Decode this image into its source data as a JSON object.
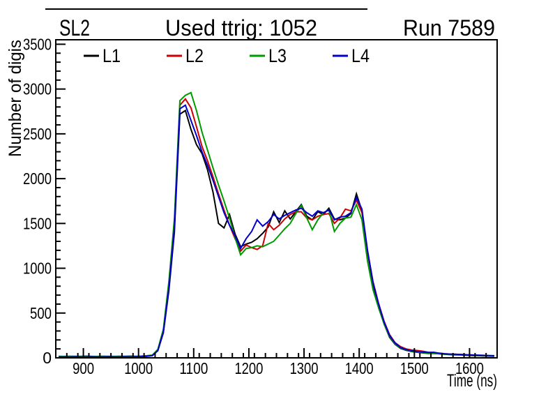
{
  "titles": {
    "left": "SL2",
    "center": "Used ttrig: 1052",
    "right": "Run 7589"
  },
  "chart_data": {
    "type": "line",
    "title": "Used ttrig: 1052",
    "pad_title_left": "SL2",
    "pad_title_right": "Run 7589",
    "xlabel": "Time (ns)",
    "ylabel": "Number of digis",
    "xlim": [
      850,
      1650
    ],
    "ylim": [
      0,
      3550
    ],
    "x_major_ticks": [
      900,
      1000,
      1100,
      1200,
      1300,
      1400,
      1500,
      1600
    ],
    "x_minor_step": 20,
    "y_major_ticks": [
      0,
      500,
      1000,
      1500,
      2000,
      2500,
      3000,
      3500
    ],
    "y_minor_step": 100,
    "grid": false,
    "legend_position": "top-inside-row",
    "x": [
      855,
      865,
      875,
      885,
      895,
      905,
      915,
      925,
      935,
      945,
      955,
      965,
      975,
      985,
      995,
      1005,
      1015,
      1025,
      1035,
      1045,
      1055,
      1065,
      1075,
      1085,
      1095,
      1105,
      1115,
      1125,
      1135,
      1145,
      1155,
      1165,
      1175,
      1185,
      1195,
      1205,
      1215,
      1225,
      1235,
      1245,
      1255,
      1265,
      1275,
      1285,
      1295,
      1305,
      1315,
      1325,
      1335,
      1345,
      1355,
      1365,
      1375,
      1385,
      1395,
      1405,
      1415,
      1425,
      1435,
      1445,
      1455,
      1465,
      1475,
      1485,
      1495,
      1505,
      1515,
      1525,
      1535,
      1545,
      1555,
      1565,
      1575,
      1585,
      1595,
      1605,
      1615,
      1625,
      1635,
      1645
    ],
    "series": [
      {
        "name": "L1",
        "color": "#000000",
        "values": [
          12,
          10,
          13,
          11,
          12,
          14,
          12,
          11,
          13,
          12,
          11,
          13,
          12,
          14,
          13,
          15,
          18,
          25,
          80,
          280,
          750,
          1400,
          2720,
          2760,
          2550,
          2380,
          2280,
          2100,
          1850,
          1500,
          1450,
          1600,
          1380,
          1240,
          1270,
          1290,
          1330,
          1390,
          1460,
          1630,
          1510,
          1640,
          1550,
          1630,
          1710,
          1580,
          1540,
          1630,
          1600,
          1670,
          1550,
          1540,
          1560,
          1610,
          1830,
          1640,
          1180,
          820,
          580,
          380,
          230,
          150,
          105,
          85,
          70,
          62,
          55,
          50,
          48,
          44,
          40,
          36,
          34,
          32,
          28,
          26,
          24,
          22,
          20,
          18
        ]
      },
      {
        "name": "L2",
        "color": "#cc0000",
        "values": [
          13,
          11,
          12,
          12,
          13,
          12,
          11,
          13,
          12,
          11,
          14,
          12,
          13,
          12,
          14,
          16,
          20,
          25,
          85,
          300,
          800,
          1500,
          2820,
          2890,
          2790,
          2580,
          2360,
          2200,
          2020,
          1830,
          1650,
          1480,
          1330,
          1190,
          1260,
          1230,
          1210,
          1250,
          1500,
          1430,
          1480,
          1550,
          1600,
          1630,
          1630,
          1560,
          1540,
          1580,
          1600,
          1610,
          1500,
          1560,
          1660,
          1640,
          1760,
          1620,
          1190,
          850,
          610,
          410,
          260,
          170,
          125,
          100,
          88,
          82,
          74,
          62,
          56,
          50,
          45,
          42,
          40,
          36,
          34,
          32,
          28,
          26,
          24,
          22
        ]
      },
      {
        "name": "L3",
        "color": "#009900",
        "values": [
          18,
          16,
          19,
          17,
          18,
          20,
          17,
          16,
          19,
          18,
          16,
          19,
          17,
          20,
          18,
          20,
          24,
          30,
          95,
          320,
          850,
          1550,
          2870,
          2930,
          2960,
          2760,
          2520,
          2320,
          2120,
          1930,
          1750,
          1560,
          1340,
          1150,
          1220,
          1230,
          1250,
          1240,
          1270,
          1300,
          1370,
          1440,
          1500,
          1610,
          1700,
          1560,
          1430,
          1540,
          1620,
          1650,
          1410,
          1500,
          1560,
          1570,
          1710,
          1540,
          1080,
          760,
          560,
          380,
          240,
          155,
          110,
          88,
          72,
          64,
          58,
          54,
          50,
          46,
          42,
          40,
          38,
          36,
          32,
          30,
          28,
          26,
          24,
          22
        ]
      },
      {
        "name": "L4",
        "color": "#0000cc",
        "values": [
          11,
          12,
          11,
          13,
          11,
          12,
          13,
          11,
          12,
          13,
          12,
          11,
          13,
          12,
          14,
          15,
          19,
          25,
          82,
          290,
          780,
          1450,
          2780,
          2820,
          2650,
          2480,
          2300,
          2150,
          1980,
          1800,
          1620,
          1480,
          1360,
          1220,
          1330,
          1410,
          1540,
          1470,
          1520,
          1600,
          1550,
          1590,
          1620,
          1650,
          1670,
          1620,
          1580,
          1640,
          1620,
          1650,
          1540,
          1570,
          1580,
          1620,
          1790,
          1660,
          1200,
          840,
          600,
          400,
          250,
          165,
          115,
          92,
          78,
          70,
          64,
          60,
          62,
          52,
          46,
          42,
          40,
          38,
          34,
          32,
          30,
          28,
          26,
          24
        ]
      }
    ]
  }
}
